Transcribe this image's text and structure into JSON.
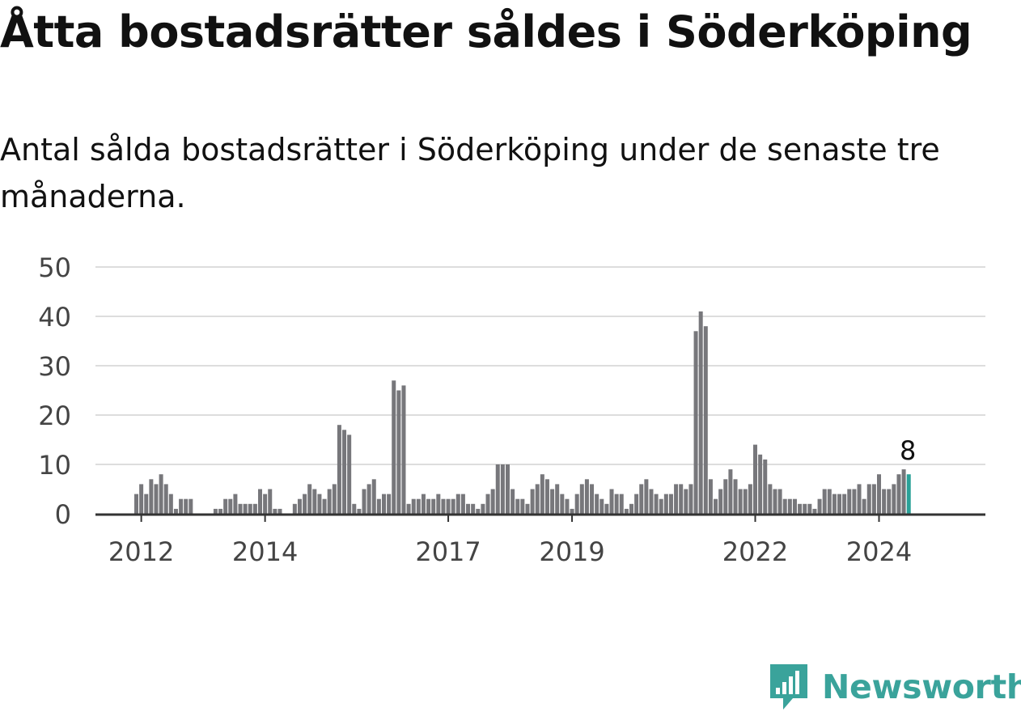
{
  "title": "Åtta bostadsrätter såldes i Söderköping",
  "subtitle": "Antal sålda bostadsrätter i Söderköping under de senaste tre månaderna.",
  "colors": {
    "bar": "#77777b",
    "highlight": "#2aa198",
    "grid": "#dddddd",
    "axis": "#333333",
    "tick_text": "#444444",
    "brand": "#3aa39b"
  },
  "chart_data": {
    "type": "bar",
    "x_start": "2012-01",
    "y_ticks": [
      0,
      10,
      20,
      30,
      40,
      50
    ],
    "ylim": [
      0,
      50
    ],
    "x_tick_labels": [
      {
        "label": "2012",
        "month_index": 1
      },
      {
        "label": "2014",
        "month_index": 26
      },
      {
        "label": "2017",
        "month_index": 63
      },
      {
        "label": "2019",
        "month_index": 88
      },
      {
        "label": "2022",
        "month_index": 125
      },
      {
        "label": "2024",
        "month_index": 150
      }
    ],
    "values": [
      4,
      6,
      4,
      7,
      6,
      8,
      6,
      4,
      1,
      3,
      3,
      3,
      0,
      0,
      0,
      0,
      1,
      1,
      3,
      3,
      4,
      2,
      2,
      2,
      2,
      5,
      4,
      5,
      1,
      1,
      0,
      0,
      2,
      3,
      4,
      6,
      5,
      4,
      3,
      5,
      6,
      18,
      17,
      16,
      2,
      1,
      5,
      6,
      7,
      3,
      4,
      4,
      27,
      25,
      26,
      2,
      3,
      3,
      4,
      3,
      3,
      4,
      3,
      3,
      3,
      4,
      4,
      2,
      2,
      1,
      2,
      4,
      5,
      10,
      10,
      10,
      5,
      3,
      3,
      2,
      5,
      6,
      8,
      7,
      5,
      6,
      4,
      3,
      1,
      4,
      6,
      7,
      6,
      4,
      3,
      2,
      5,
      4,
      4,
      1,
      2,
      4,
      6,
      7,
      5,
      4,
      3,
      4,
      4,
      6,
      6,
      5,
      6,
      37,
      41,
      38,
      7,
      3,
      5,
      7,
      9,
      7,
      5,
      5,
      6,
      14,
      12,
      11,
      6,
      5,
      5,
      3,
      3,
      3,
      2,
      2,
      2,
      1,
      3,
      5,
      5,
      4,
      4,
      4,
      5,
      5,
      6,
      3,
      6,
      6,
      8,
      5,
      5,
      6,
      8,
      9,
      8
    ],
    "highlight_last": true,
    "last_value_label": "8",
    "grid": true
  },
  "logo": {
    "text": "Newsworthy",
    "icon": "newsworthy-chart-bubble-icon"
  }
}
